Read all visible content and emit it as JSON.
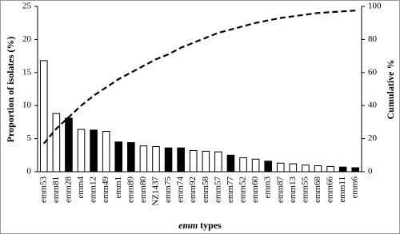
{
  "chart_data": {
    "type": "bar",
    "x_label": "emm types",
    "y_label": "Proportion of isolates (%)",
    "y2_label": "Cumulative %",
    "categories": [
      "emm53",
      "emm81",
      "emm28",
      "emm4",
      "emm12",
      "emm49",
      "emm1",
      "emm89",
      "emm80",
      "NZ1437",
      "emm75",
      "emm74",
      "emm92",
      "emm58",
      "emm57",
      "emm77",
      "emm52",
      "emm60",
      "emm3",
      "emm87",
      "emm13",
      "emm55",
      "emm68",
      "emm66",
      "emm11",
      "emm6"
    ],
    "series": [
      {
        "type": "bar",
        "values": [
          16.8,
          8.8,
          8.1,
          6.4,
          6.3,
          6.1,
          4.5,
          4.4,
          3.9,
          3.8,
          3.6,
          3.6,
          3.2,
          3.1,
          3.0,
          2.5,
          2.1,
          1.9,
          1.6,
          1.3,
          1.2,
          1.0,
          0.9,
          0.8,
          0.7,
          0.6
        ],
        "colors": [
          "#ffffff",
          "#ffffff",
          "#000000",
          "#ffffff",
          "#000000",
          "#ffffff",
          "#000000",
          "#000000",
          "#ffffff",
          "#ffffff",
          "#000000",
          "#000000",
          "#ffffff",
          "#ffffff",
          "#ffffff",
          "#000000",
          "#ffffff",
          "#ffffff",
          "#000000",
          "#ffffff",
          "#ffffff",
          "#ffffff",
          "#ffffff",
          "#ffffff",
          "#000000",
          "#000000"
        ],
        "edgecolor": "#000000"
      },
      {
        "type": "line",
        "axis": "y2",
        "color": "#000000",
        "dashed": true,
        "values": [
          17,
          26,
          33,
          40,
          46,
          51,
          56,
          60,
          64,
          68,
          71,
          75,
          78,
          81,
          84,
          86,
          88,
          90,
          91.5,
          93,
          94,
          95,
          96,
          96.5,
          97,
          97.5
        ]
      }
    ],
    "ylim": [
      0,
      25
    ],
    "yticks": [
      0,
      5,
      10,
      15,
      20,
      25
    ],
    "y2lim": [
      0,
      100
    ],
    "y2ticks": [
      0,
      20,
      40,
      60,
      80,
      100
    ]
  }
}
